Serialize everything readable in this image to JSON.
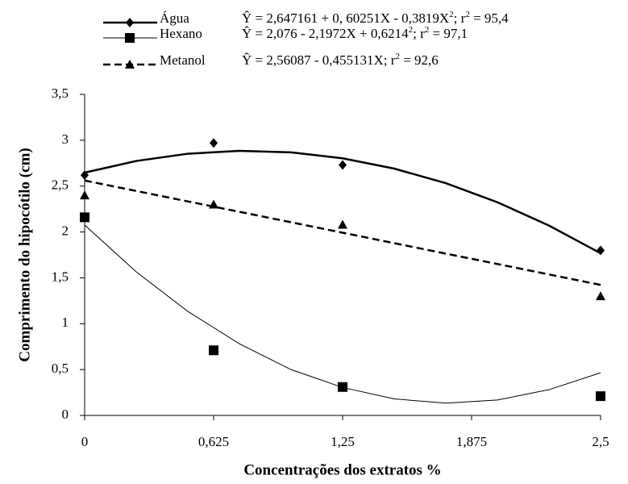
{
  "chart_data": {
    "type": "scatter",
    "x_label": "Concentrações dos extratos %",
    "y_label": "Comprimento do hipocótilo (cm)",
    "x": [
      0,
      0.625,
      1.25,
      2.5
    ],
    "fit_x": [
      0,
      0.25,
      0.5,
      0.75,
      1,
      1.25,
      1.5,
      1.75,
      2,
      2.25,
      2.5
    ],
    "xlim": [
      0,
      2.5
    ],
    "xticks": [
      0,
      {
        "value": 0.625,
        "label": "0,625"
      },
      {
        "value": 1.25,
        "label": "1,25"
      },
      {
        "value": 1.875,
        "label": "1,875"
      },
      {
        "value": 2.5,
        "label": "2,5"
      }
    ],
    "ylim": [
      0,
      3.5
    ],
    "yticks": [
      0,
      {
        "value": 0.5,
        "label": "0,5"
      },
      1,
      {
        "value": 1.5,
        "label": "1,5"
      },
      2,
      {
        "value": 2.5,
        "label": "2,5"
      },
      3,
      {
        "value": 3.5,
        "label": "3,5"
      }
    ],
    "series": [
      {
        "name": "Água",
        "color": "#000000",
        "marker": "diamond",
        "line_style": "thick",
        "equation": [
          "Ŷ = 2,647161 + 0, 60251X - 0,3819X",
          "2",
          "; r",
          "2",
          " = 95,4"
        ],
        "values": [
          2.62,
          2.97,
          2.73,
          1.8
        ],
        "fit_values": [
          2.647,
          2.774,
          2.853,
          2.884,
          2.868,
          2.803,
          2.691,
          2.532,
          2.324,
          2.07,
          1.768
        ]
      },
      {
        "name": "Hexano",
        "color": "#000000",
        "marker": "square",
        "line_style": "thin",
        "equation": [
          "Ŷ = 2,076 - 2,1972X + 0,6214",
          "2",
          "; r",
          "2",
          " = 97,1"
        ],
        "values": [
          2.16,
          0.71,
          0.31,
          0.21
        ],
        "fit_values": [
          2.076,
          1.565,
          1.134,
          0.781,
          0.5,
          0.305,
          0.18,
          0.134,
          0.168,
          0.281,
          0.465
        ]
      },
      {
        "name": "Metanol",
        "color": "#000000",
        "marker": "triangle",
        "line_style": "dashed",
        "equation": [
          "Ŷ = 2,56087 - 0,455131X;  r",
          "2",
          " = 92,6"
        ],
        "values": [
          2.4,
          2.3,
          2.08,
          1.3
        ],
        "fit_values": [
          2.561,
          2.447,
          2.333,
          2.22,
          2.106,
          1.992,
          1.878,
          1.764,
          1.651,
          1.537,
          1.423
        ]
      }
    ]
  }
}
